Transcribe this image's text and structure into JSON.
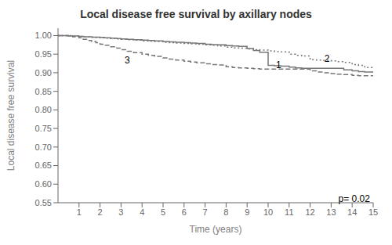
{
  "chart_data": {
    "type": "line",
    "step": true,
    "title": "Local disease free survival by axillary nodes",
    "x_label": "Time (years)",
    "y_label": "Local disease free survival",
    "xlim": [
      0,
      15
    ],
    "ylim": [
      0.55,
      1.02
    ],
    "xticks": [
      1,
      2,
      3,
      4,
      5,
      6,
      7,
      8,
      9,
      10,
      11,
      12,
      13,
      14,
      15
    ],
    "yticks": [
      0.55,
      {
        "value": 0.6,
        "label": "0.60"
      },
      0.65,
      {
        "value": 0.7,
        "label": "0.70"
      },
      0.75,
      {
        "value": 0.8,
        "label": "0.80"
      },
      0.85,
      {
        "value": 0.9,
        "label": "0.90"
      },
      0.95,
      {
        "value": 1.0,
        "label": "1.00"
      }
    ],
    "grid": false,
    "x": [
      0.0,
      0.3,
      0.5,
      0.7,
      1.0,
      1.2,
      1.4,
      1.6,
      1.8,
      2.0,
      2.2,
      2.5,
      2.8,
      3.0,
      3.3,
      3.6,
      4.0,
      4.3,
      4.6,
      5.0,
      5.3,
      5.6,
      6.0,
      6.3,
      6.6,
      7.0,
      7.3,
      7.6,
      8.0,
      8.3,
      8.6,
      9.0,
      9.3,
      9.6,
      10.0,
      10.3,
      10.6,
      11.0,
      11.3,
      11.6,
      12.0,
      12.3,
      12.6,
      13.0,
      13.3,
      13.6,
      14.0,
      14.3,
      14.6,
      15.0
    ],
    "series": [
      {
        "color": "#777777",
        "line_style": "solid",
        "values": [
          1.0,
          1.0,
          0.999,
          0.999,
          0.998,
          0.997,
          0.997,
          0.996,
          0.996,
          0.995,
          0.994,
          0.993,
          0.992,
          0.991,
          0.99,
          0.989,
          0.988,
          0.987,
          0.986,
          0.984,
          0.983,
          0.982,
          0.981,
          0.98,
          0.979,
          0.977,
          0.976,
          0.975,
          0.973,
          0.972,
          0.971,
          0.965,
          0.96,
          0.955,
          0.92,
          0.919,
          0.918,
          0.915,
          0.913,
          0.912,
          0.912,
          0.912,
          0.912,
          0.912,
          0.912,
          0.908,
          0.905,
          0.903,
          0.902,
          0.9
        ]
      },
      {
        "color": "#777777",
        "line_style": "dotted",
        "values": [
          1.0,
          1.0,
          1.0,
          0.999,
          0.998,
          0.997,
          0.997,
          0.996,
          0.995,
          0.994,
          0.993,
          0.992,
          0.991,
          0.99,
          0.989,
          0.988,
          0.986,
          0.985,
          0.984,
          0.982,
          0.981,
          0.98,
          0.979,
          0.978,
          0.977,
          0.975,
          0.974,
          0.972,
          0.969,
          0.967,
          0.966,
          0.964,
          0.962,
          0.961,
          0.959,
          0.957,
          0.956,
          0.95,
          0.947,
          0.945,
          0.935,
          0.934,
          0.933,
          0.932,
          0.93,
          0.928,
          0.922,
          0.92,
          0.914,
          0.912
        ]
      },
      {
        "color": "#777777",
        "line_style": "dashed",
        "values": [
          1.0,
          1.0,
          0.999,
          0.997,
          0.994,
          0.99,
          0.987,
          0.984,
          0.981,
          0.977,
          0.974,
          0.97,
          0.966,
          0.962,
          0.958,
          0.954,
          0.95,
          0.947,
          0.944,
          0.94,
          0.937,
          0.934,
          0.931,
          0.929,
          0.927,
          0.924,
          0.922,
          0.921,
          0.916,
          0.914,
          0.913,
          0.912,
          0.911,
          0.91,
          0.91,
          0.91,
          0.91,
          0.91,
          0.91,
          0.91,
          0.905,
          0.902,
          0.9,
          0.898,
          0.896,
          0.895,
          0.893,
          0.892,
          0.892,
          0.891
        ]
      }
    ],
    "annotations": [
      {
        "text": "1",
        "x": 10.3,
        "y": 0.9215,
        "align": "left"
      },
      {
        "text": "2",
        "x": 12.6,
        "y": 0.938,
        "align": "left"
      },
      {
        "text": "3",
        "x": 3.1,
        "y": 0.934,
        "align": "left"
      },
      {
        "text": "p= 0.02",
        "x": 14.85,
        "y": 0.562,
        "align": "right"
      }
    ]
  }
}
